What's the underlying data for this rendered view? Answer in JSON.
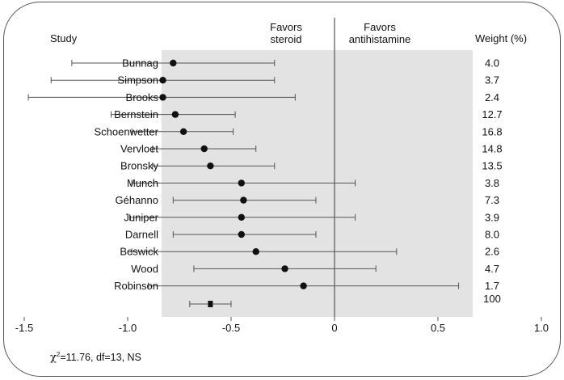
{
  "chart_data": {
    "type": "forest",
    "header_study": "Study",
    "header_weight": "Weight (%)",
    "favors_left": [
      "Favors",
      "steroid"
    ],
    "favors_right": [
      "Favors",
      "antihistamine"
    ],
    "xlim": [
      -1.6,
      1.3
    ],
    "xticks": [
      {
        "value": -1.5,
        "label": "-1.5"
      },
      {
        "value": -1.0,
        "label": "-1.0"
      },
      {
        "value": -0.5,
        "label": "-0.5"
      },
      {
        "value": 0,
        "label": "0"
      },
      {
        "value": 0.5,
        "label": "0.5"
      },
      {
        "value": 1.0,
        "label": "1.0"
      }
    ],
    "studies": [
      {
        "name": "Bunnag",
        "est": -0.78,
        "low": -1.27,
        "high": -0.29,
        "weight": "4.0"
      },
      {
        "name": "Simpson",
        "est": -0.83,
        "low": -1.37,
        "high": -0.29,
        "weight": "3.7"
      },
      {
        "name": "Brooks",
        "est": -0.83,
        "low": -1.48,
        "high": -0.19,
        "weight": "2.4"
      },
      {
        "name": "Bernstein",
        "est": -0.77,
        "low": -1.08,
        "high": -0.48,
        "weight": "12.7"
      },
      {
        "name": "Schoenwetter",
        "est": -0.73,
        "low": -0.98,
        "high": -0.49,
        "weight": "16.8"
      },
      {
        "name": "Vervloet",
        "est": -0.63,
        "low": -0.88,
        "high": -0.38,
        "weight": "14.8"
      },
      {
        "name": "Bronsky",
        "est": -0.6,
        "low": -0.88,
        "high": -0.29,
        "weight": "13.5"
      },
      {
        "name": "Munch",
        "est": -0.45,
        "low": -0.98,
        "high": 0.1,
        "weight": "3.8"
      },
      {
        "name": "Géhanno",
        "est": -0.44,
        "low": -0.78,
        "high": -0.09,
        "weight": "7.3"
      },
      {
        "name": "Juniper",
        "est": -0.45,
        "low": -0.99,
        "high": 0.1,
        "weight": "3.9"
      },
      {
        "name": "Darnell",
        "est": -0.45,
        "low": -0.78,
        "high": -0.09,
        "weight": "8.0"
      },
      {
        "name": "Beswick",
        "est": -0.38,
        "low": -0.98,
        "high": 0.3,
        "weight": "2.6"
      },
      {
        "name": "Wood",
        "est": -0.24,
        "low": -0.68,
        "high": 0.2,
        "weight": "4.7"
      },
      {
        "name": "Robinson",
        "est": -0.15,
        "low": -0.9,
        "high": 0.6,
        "weight": "1.7"
      }
    ],
    "pooled": {
      "est": -0.6,
      "low": -0.7,
      "high": -0.5,
      "weight": "100"
    },
    "stats": {
      "symbol": "χ",
      "exponent": "2",
      "text": "=11.76, df=13, NS"
    },
    "colors": {
      "panel": "#e3e3e3",
      "marker": "#111111",
      "ci_line": "#555555",
      "zero_line": "#555555"
    }
  }
}
